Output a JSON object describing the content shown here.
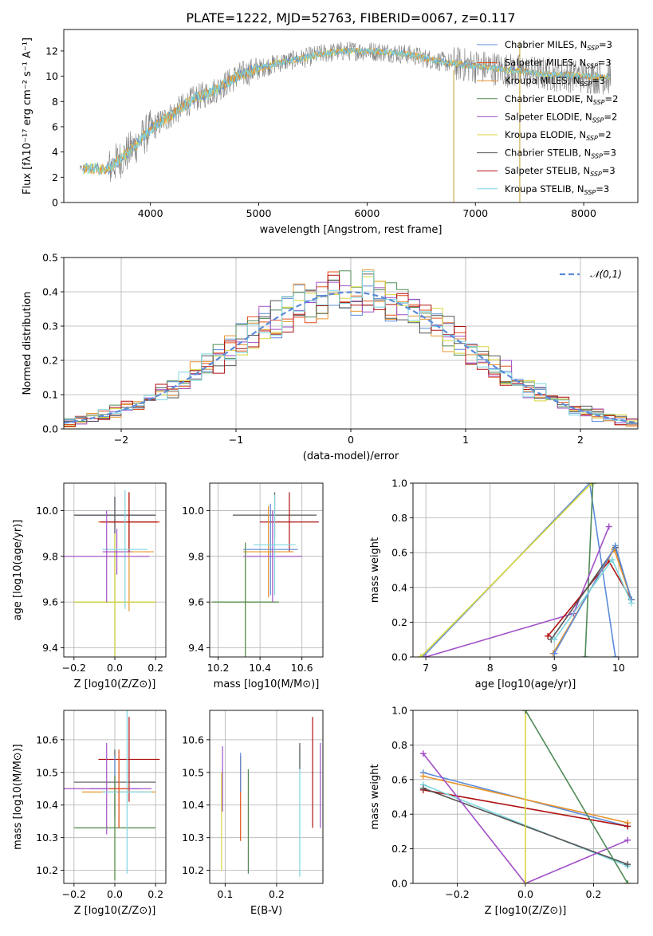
{
  "title": "PLATE=1222, MJD=52763, FIBERID=0067, z=0.117",
  "colors": {
    "chabrier_miles": "#5b8bd8",
    "salpeter_miles": "#e04f1a",
    "kroupa_miles": "#e8942e",
    "chabrier_elodie": "#4f8a55",
    "salpeter_elodie": "#a24fc8",
    "kroupa_elodie": "#d9d63c",
    "chabrier_stelib": "#555555",
    "salpeter_stelib": "#b01010",
    "kroupa_stelib": "#7fd6e0",
    "gauss": "#5b8bd8",
    "data": "#808080"
  },
  "chart_data": [
    {
      "id": "spectrum",
      "type": "line",
      "xlabel": "wavelength [Angstrom, rest frame]",
      "ylabel": "Flux [fλ10⁻¹⁷ erg cm⁻² s⁻¹ A⁻¹]",
      "xlim": [
        3200,
        8500
      ],
      "ylim": [
        0,
        13.7
      ],
      "xticks": [
        "4000",
        "5000",
        "6000",
        "7000",
        "8000"
      ],
      "yticks": [
        "0",
        "2",
        "4",
        "6",
        "8",
        "10",
        "12"
      ],
      "model_curve_x": [
        3400,
        3600,
        3800,
        4000,
        4200,
        4400,
        4600,
        4800,
        5000,
        5200,
        5400,
        5600,
        5800,
        6000,
        6200,
        6400,
        6600,
        6800,
        7000,
        7200,
        7400,
        7600,
        7800,
        8000,
        8200
      ],
      "model_curve_y": [
        2.7,
        2.6,
        4.0,
        5.8,
        7.0,
        8.2,
        8.9,
        10.0,
        10.6,
        11.1,
        11.4,
        11.8,
        12.0,
        12.0,
        11.9,
        11.7,
        11.3,
        11.0,
        10.8,
        10.6,
        10.4,
        10.2,
        10.1,
        10.0,
        9.9
      ],
      "legend": [
        {
          "label": "Chabrier MILES, N",
          "sub": "SSP",
          "suffix": "=3",
          "color_key": "chabrier_miles"
        },
        {
          "label": "Salpeter MILES, N",
          "sub": "SSP",
          "suffix": "=3",
          "color_key": "salpeter_miles"
        },
        {
          "label": "Kroupa MILES, N",
          "sub": "SSP",
          "suffix": "=3",
          "color_key": "kroupa_miles"
        },
        {
          "label": "Chabrier ELODIE, N",
          "sub": "SSP",
          "suffix": "=2",
          "color_key": "chabrier_elodie"
        },
        {
          "label": "Salpeter ELODIE, N",
          "sub": "SSP",
          "suffix": "=2",
          "color_key": "salpeter_elodie"
        },
        {
          "label": "Kroupa ELODIE, N",
          "sub": "SSP",
          "suffix": "=2",
          "color_key": "kroupa_elodie"
        },
        {
          "label": "Chabrier STELIB, N",
          "sub": "SSP",
          "suffix": "=3",
          "color_key": "chabrier_stelib"
        },
        {
          "label": "Salpeter STELIB, N",
          "sub": "SSP",
          "suffix": "=3",
          "color_key": "salpeter_stelib"
        },
        {
          "label": "Kroupa STELIB, N",
          "sub": "SSP",
          "suffix": "=3",
          "color_key": "kroupa_stelib"
        }
      ]
    },
    {
      "id": "residuals",
      "type": "line",
      "xlabel": "(data-model)/error",
      "ylabel": "Normed distribution",
      "xlim": [
        -2.5,
        2.5
      ],
      "ylim": [
        0,
        0.5
      ],
      "xticks": [
        "−2",
        "−1",
        "0",
        "1",
        "2"
      ],
      "yticks": [
        "0.0",
        "0.1",
        "0.2",
        "0.3",
        "0.4",
        "0.5"
      ],
      "legend": "N(0, 1)",
      "gauss_label": "𝒩(0,1)"
    },
    {
      "id": "age_vs_Z",
      "type": "scatter",
      "xlabel": "Z [log10(Z/Z⊙)]",
      "ylabel": "age  [log10(age/yr)]",
      "xlim": [
        -0.25,
        0.25
      ],
      "ylim": [
        9.36,
        10.12
      ],
      "xticks": [
        "−0.2",
        "0.0",
        "0.2"
      ],
      "yticks": [
        "9.4",
        "9.6",
        "9.8",
        "10.0"
      ],
      "points": [
        {
          "x": 0.0,
          "y": 9.98,
          "xerr": 0.2,
          "yerr": 0.08,
          "c": "chabrier_miles"
        },
        {
          "x": 0.07,
          "y": 9.95,
          "xerr": 0.15,
          "yerr": 0.13,
          "c": "salpeter_miles"
        },
        {
          "x": 0.07,
          "y": 9.82,
          "xerr": 0.12,
          "yerr": 0.26,
          "c": "kroupa_miles"
        },
        {
          "x": 0.0,
          "y": 9.6,
          "xerr": 0.2,
          "yerr": 0.3,
          "c": "chabrier_elodie"
        },
        {
          "x": 0.0,
          "y": 9.6,
          "xerr": 0.2,
          "yerr": 0.3,
          "c": "kroupa_elodie"
        },
        {
          "x": 0.01,
          "y": 9.82,
          "xerr": 0.07,
          "yerr": 0.1,
          "c": "salpeter_elodie"
        },
        {
          "x": 0.0,
          "y": 9.98,
          "xerr": 0.2,
          "yerr": 0.08,
          "c": "chabrier_stelib"
        },
        {
          "x": 0.07,
          "y": 9.95,
          "xerr": 0.14,
          "yerr": 0.13,
          "c": "salpeter_stelib"
        },
        {
          "x": 0.05,
          "y": 9.83,
          "xerr": 0.11,
          "yerr": 0.26,
          "c": "kroupa_stelib"
        },
        {
          "x": -0.04,
          "y": 9.8,
          "xerr": 0.21,
          "yerr": 0.2,
          "c": "salpeter_elodie"
        }
      ]
    },
    {
      "id": "age_vs_mass",
      "type": "scatter",
      "xlabel": "mass [log10(M/M⊙)]",
      "ylabel": "",
      "xlim": [
        10.16,
        10.7
      ],
      "ylim": [
        9.36,
        10.12
      ],
      "xticks": [
        "10.2",
        "10.4",
        "10.6"
      ],
      "yticks": [
        "9.4",
        "9.6",
        "9.8",
        "10.0"
      ],
      "points": [
        {
          "x": 10.47,
          "y": 9.98,
          "xerr": 0.2,
          "yerr": 0.1,
          "c": "chabrier_stelib"
        },
        {
          "x": 10.54,
          "y": 9.95,
          "xerr": 0.14,
          "yerr": 0.13,
          "c": "salpeter_stelib"
        },
        {
          "x": 10.45,
          "y": 9.83,
          "xerr": 0.13,
          "yerr": 0.2,
          "c": "chabrier_miles"
        },
        {
          "x": 10.44,
          "y": 9.82,
          "xerr": 0.12,
          "yerr": 0.2,
          "c": "kroupa_miles"
        },
        {
          "x": 10.33,
          "y": 9.6,
          "xerr": 0.16,
          "yerr": 0.26,
          "c": "kroupa_elodie"
        },
        {
          "x": 10.33,
          "y": 9.6,
          "xerr": 0.16,
          "yerr": 0.26,
          "c": "chabrier_elodie"
        },
        {
          "x": 10.46,
          "y": 9.8,
          "xerr": 0.14,
          "yerr": 0.2,
          "c": "salpeter_elodie"
        },
        {
          "x": 10.47,
          "y": 9.85,
          "xerr": 0.1,
          "yerr": 0.22,
          "c": "kroupa_stelib"
        }
      ]
    },
    {
      "id": "weight_vs_age",
      "type": "line",
      "xlabel": "age  [log10(age/yr)]",
      "ylabel": "mass weight",
      "xlim": [
        6.8,
        10.3
      ],
      "ylim": [
        0,
        1
      ],
      "xticks": [
        "7",
        "8",
        "9",
        "10"
      ],
      "yticks": [
        "0.0",
        "0.2",
        "0.4",
        "0.6",
        "0.8",
        "1.0"
      ],
      "series": [
        {
          "c": "chabrier_miles",
          "x": [
            6.95,
            9.55,
            9.95
          ],
          "y": [
            0.0,
            1.0,
            0.0
          ]
        },
        {
          "c": "kroupa_elodie",
          "x": [
            6.92,
            9.58
          ],
          "y": [
            0.0,
            1.0
          ]
        },
        {
          "c": "chabrier_elodie",
          "x": [
            9.48,
            9.6
          ],
          "y": [
            0.0,
            1.0
          ]
        },
        {
          "c": "salpeter_elodie",
          "x": [
            7.0,
            9.3,
            9.85
          ],
          "y": [
            0.0,
            0.25,
            0.75
          ]
        },
        {
          "c": "salpeter_stelib",
          "x": [
            8.9,
            9.85,
            10.2
          ],
          "y": [
            0.12,
            0.55,
            0.33
          ]
        },
        {
          "c": "chabrier_stelib",
          "x": [
            8.95,
            9.95,
            10.2
          ],
          "y": [
            0.1,
            0.63,
            0.33
          ]
        },
        {
          "c": "kroupa_miles",
          "x": [
            8.98,
            9.93,
            10.2
          ],
          "y": [
            0.02,
            0.62,
            0.33
          ]
        },
        {
          "c": "chabrier_miles",
          "x": [
            9.0,
            9.95,
            10.2
          ],
          "y": [
            0.02,
            0.64,
            0.33
          ]
        },
        {
          "c": "kroupa_stelib",
          "x": [
            9.0,
            9.9,
            10.2
          ],
          "y": [
            0.1,
            0.56,
            0.31
          ]
        }
      ]
    },
    {
      "id": "mass_vs_Z",
      "type": "scatter",
      "xlabel": "Z [log10(Z/Z⊙)]",
      "ylabel": "mass [log10(M/M⊙)]",
      "xlim": [
        -0.25,
        0.25
      ],
      "ylim": [
        10.16,
        10.69
      ],
      "xticks": [
        "−0.2",
        "0.0",
        "0.2"
      ],
      "yticks": [
        "10.2",
        "10.3",
        "10.4",
        "10.5",
        "10.6"
      ],
      "points": [
        {
          "x": 0.07,
          "y": 10.54,
          "xerr": 0.15,
          "yerr": 0.13,
          "c": "salpeter_stelib"
        },
        {
          "x": 0.0,
          "y": 10.47,
          "xerr": 0.2,
          "yerr": 0.1,
          "c": "chabrier_stelib"
        },
        {
          "x": 0.0,
          "y": 10.45,
          "xerr": 0.12,
          "yerr": 0.1,
          "c": "chabrier_miles"
        },
        {
          "x": 0.02,
          "y": 10.44,
          "xerr": 0.18,
          "yerr": 0.11,
          "c": "kroupa_miles"
        },
        {
          "x": -0.04,
          "y": 10.45,
          "xerr": 0.22,
          "yerr": 0.14,
          "c": "salpeter_elodie"
        },
        {
          "x": 0.0,
          "y": 10.33,
          "xerr": 0.2,
          "yerr": 0.16,
          "c": "kroupa_elodie"
        },
        {
          "x": 0.0,
          "y": 10.33,
          "xerr": 0.2,
          "yerr": 0.16,
          "c": "chabrier_elodie"
        },
        {
          "x": 0.06,
          "y": 10.44,
          "xerr": 0.12,
          "yerr": 0.25,
          "c": "kroupa_stelib"
        },
        {
          "x": 0.02,
          "y": 10.45,
          "xerr": 0.05,
          "yerr": 0.12,
          "c": "salpeter_miles"
        }
      ]
    },
    {
      "id": "mass_vs_ebv",
      "type": "scatter",
      "xlabel": "E(B-V)",
      "ylabel": "",
      "xlim": [
        0.07,
        0.29
      ],
      "ylim": [
        10.16,
        10.69
      ],
      "xticks": [
        "0.1",
        "0.2"
      ],
      "yticks": [
        "10.2",
        "10.3",
        "10.4",
        "10.5",
        "10.6"
      ],
      "points": [
        {
          "x": 0.095,
          "y": 10.48,
          "yerr": 0.1,
          "c": "salpeter_elodie"
        },
        {
          "x": 0.093,
          "y": 10.35,
          "yerr": 0.15,
          "c": "kroupa_elodie"
        },
        {
          "x": 0.13,
          "y": 10.42,
          "yerr": 0.13,
          "c": "salpeter_miles"
        },
        {
          "x": 0.13,
          "y": 10.5,
          "yerr": 0.06,
          "c": "chabrier_miles"
        },
        {
          "x": 0.145,
          "y": 10.35,
          "yerr": 0.16,
          "c": "chabrier_elodie"
        },
        {
          "x": 0.245,
          "y": 10.38,
          "yerr": 0.2,
          "c": "kroupa_stelib"
        },
        {
          "x": 0.245,
          "y": 10.55,
          "yerr": 0.04,
          "c": "chabrier_stelib"
        },
        {
          "x": 0.27,
          "y": 10.5,
          "yerr": 0.17,
          "c": "salpeter_stelib"
        },
        {
          "x": 0.285,
          "y": 10.46,
          "yerr": 0.13,
          "c": "salpeter_elodie"
        }
      ]
    },
    {
      "id": "weight_vs_Z",
      "type": "line",
      "xlabel": "Z [log10(Z/Z⊙)]",
      "ylabel": "mass weight",
      "xlim": [
        -0.33,
        0.33
      ],
      "ylim": [
        0,
        1
      ],
      "xticks": [
        "−0.2",
        "0.0",
        "0.2"
      ],
      "yticks": [
        "0.0",
        "0.2",
        "0.4",
        "0.6",
        "0.8",
        "1.0"
      ],
      "series": [
        {
          "c": "chabrier_miles",
          "x": [
            -0.3,
            0.3
          ],
          "y": [
            0.64,
            0.33
          ]
        },
        {
          "c": "kroupa_miles",
          "x": [
            -0.3,
            0.3
          ],
          "y": [
            0.62,
            0.35
          ]
        },
        {
          "c": "salpeter_stelib",
          "x": [
            -0.3,
            0.3
          ],
          "y": [
            0.54,
            0.33
          ]
        },
        {
          "c": "kroupa_stelib",
          "x": [
            -0.3,
            0.3
          ],
          "y": [
            0.57,
            0.1
          ]
        },
        {
          "c": "chabrier_stelib",
          "x": [
            -0.3,
            0.3
          ],
          "y": [
            0.55,
            0.11
          ]
        },
        {
          "c": "salpeter_elodie",
          "x": [
            -0.3,
            0.0,
            0.3
          ],
          "y": [
            0.75,
            0.0,
            0.25
          ]
        },
        {
          "c": "kroupa_elodie",
          "x": [
            0.0,
            0.0
          ],
          "y": [
            0.0,
            1.0
          ]
        },
        {
          "c": "chabrier_elodie",
          "x": [
            0.0,
            0.3
          ],
          "y": [
            1.0,
            0.0
          ]
        }
      ]
    }
  ]
}
